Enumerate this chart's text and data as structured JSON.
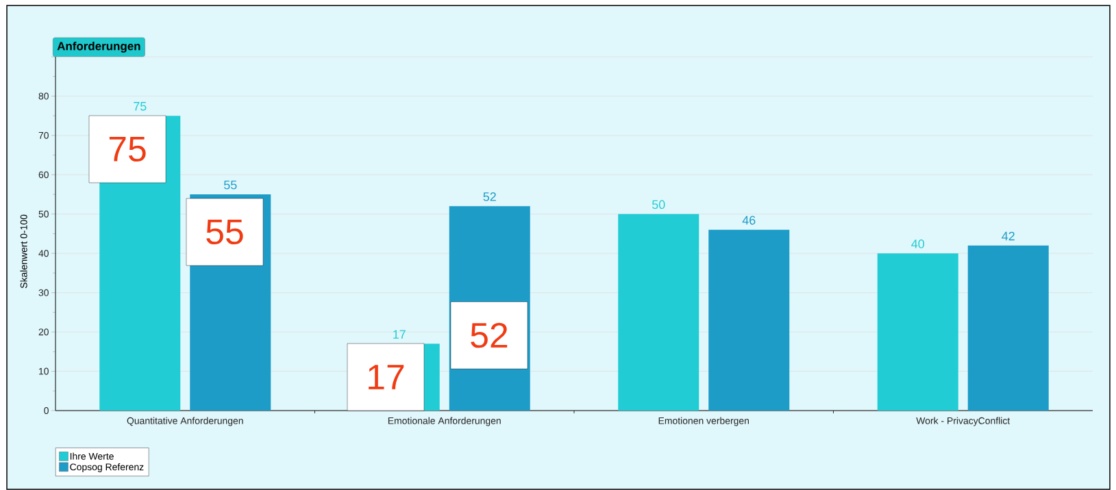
{
  "chart_data": {
    "type": "bar",
    "title": "Anforderungen",
    "ylabel": "Skalenwert 0-100",
    "categories": [
      "Quantitative Anforderungen",
      "Emotionale Anforderungen",
      "Emotionen verbergen",
      "Work - PrivacyConflict"
    ],
    "series": [
      {
        "name": "Ihre Werte",
        "color": "#22ccd4",
        "values": [
          75,
          17,
          50,
          40
        ]
      },
      {
        "name": "Copsog Referenz",
        "color": "#1e9cc8",
        "values": [
          55,
          52,
          46,
          42
        ]
      }
    ],
    "ylim": [
      0,
      90
    ],
    "yticks": [
      0,
      10,
      20,
      30,
      40,
      50,
      60,
      70,
      80,
      {
        "value": 90,
        "label": null
      }
    ],
    "grid": "y",
    "legend": "bottom left",
    "data_labels": true,
    "annotations": [
      "75",
      "55",
      "17",
      "52"
    ]
  }
}
